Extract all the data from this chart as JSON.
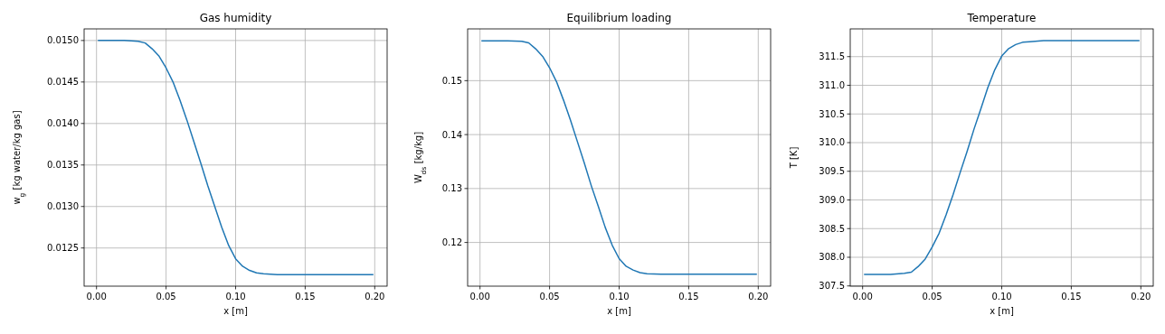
{
  "chart_data": [
    {
      "type": "line",
      "title": "Gas humidity",
      "xlabel": "x [m]",
      "ylabel": "w$_{g}$ [kg water/kg gas]",
      "grid": true,
      "xticks": [
        {
          "value": 0,
          "label": "0.00"
        },
        {
          "value": 0.05,
          "label": "0.05"
        },
        {
          "value": 0.1,
          "label": "0.10"
        },
        {
          "value": 0.15,
          "label": "0.15"
        },
        {
          "value": 0.2,
          "label": "0.20"
        }
      ],
      "x": [
        0.001,
        0.02,
        0.03,
        0.035,
        0.04,
        0.045,
        0.05,
        0.055,
        0.06,
        0.065,
        0.07,
        0.075,
        0.08,
        0.085,
        0.09,
        0.095,
        0.1,
        0.105,
        0.11,
        0.115,
        0.12,
        0.13,
        0.15,
        0.199
      ],
      "series": [
        {
          "color": "#1f77b4",
          "values": [
            0.015,
            0.015,
            0.01499,
            0.01497,
            0.0149,
            0.01481,
            0.01467,
            0.0145,
            0.01428,
            0.01404,
            0.01378,
            0.01352,
            0.01325,
            0.013,
            0.01275,
            0.01253,
            0.01237,
            0.01228,
            0.01223,
            0.0122,
            0.01219,
            0.01218,
            0.01218,
            0.01218
          ]
        }
      ],
      "xlim": [
        -0.0089,
        0.2089
      ],
      "ylim": [
        0.01204,
        0.01514
      ],
      "yticks": [
        0.0125,
        {
          "value": 0.013,
          "label": "0.0130"
        },
        0.0135,
        {
          "value": 0.014,
          "label": "0.0140"
        },
        0.0145,
        {
          "value": 0.015,
          "label": "0.0150"
        }
      ]
    },
    {
      "type": "line",
      "title": "Equilibrium loading",
      "xlabel": "x [m]",
      "ylabel": "W$_{ds}$ [kg/kg]",
      "grid": true,
      "xticks": [
        {
          "value": 0,
          "label": "0.00"
        },
        {
          "value": 0.05,
          "label": "0.05"
        },
        {
          "value": 0.1,
          "label": "0.10"
        },
        {
          "value": 0.15,
          "label": "0.15"
        },
        {
          "value": 0.2,
          "label": "0.20"
        }
      ],
      "x": [
        0.001,
        0.02,
        0.03,
        0.035,
        0.04,
        0.045,
        0.05,
        0.055,
        0.06,
        0.065,
        0.07,
        0.075,
        0.08,
        0.085,
        0.09,
        0.095,
        0.1,
        0.105,
        0.11,
        0.115,
        0.12,
        0.13,
        0.15,
        0.199
      ],
      "series": [
        {
          "color": "#1f77b4",
          "values": [
            0.1574,
            0.1574,
            0.1573,
            0.157,
            0.1559,
            0.1545,
            0.1524,
            0.1498,
            0.1464,
            0.1427,
            0.1387,
            0.1347,
            0.1305,
            0.1267,
            0.1228,
            0.1195,
            0.117,
            0.1156,
            0.1149,
            0.1144,
            0.1142,
            0.1141,
            0.1141,
            0.1141
          ]
        }
      ],
      "xlim": [
        -0.0089,
        0.2089
      ],
      "ylim": [
        0.1119,
        0.1596
      ],
      "yticks": [
        0.12,
        0.13,
        0.14,
        0.15
      ]
    },
    {
      "type": "line",
      "title": "Temperature",
      "xlabel": "x [m]",
      "ylabel": "T [K]",
      "grid": true,
      "xticks": [
        {
          "value": 0,
          "label": "0.00"
        },
        {
          "value": 0.05,
          "label": "0.05"
        },
        {
          "value": 0.1,
          "label": "0.10"
        },
        {
          "value": 0.15,
          "label": "0.15"
        },
        {
          "value": 0.2,
          "label": "0.20"
        }
      ],
      "x": [
        0.001,
        0.02,
        0.03,
        0.035,
        0.04,
        0.045,
        0.05,
        0.055,
        0.06,
        0.065,
        0.07,
        0.075,
        0.08,
        0.085,
        0.09,
        0.095,
        0.1,
        0.105,
        0.11,
        0.115,
        0.12,
        0.13,
        0.15,
        0.199
      ],
      "series": [
        {
          "color": "#1f77b4",
          "values": [
            307.7,
            307.7,
            307.72,
            307.74,
            307.84,
            307.97,
            308.18,
            308.42,
            308.74,
            309.09,
            309.47,
            309.84,
            310.23,
            310.59,
            310.96,
            311.27,
            311.51,
            311.64,
            311.71,
            311.75,
            311.76,
            311.78,
            311.78,
            311.78
          ]
        }
      ],
      "xlim": [
        -0.0089,
        0.2089
      ],
      "ylim": [
        307.496,
        311.984
      ],
      "yticks": [
        307.5,
        {
          "value": 308,
          "label": "308.0"
        },
        308.5,
        {
          "value": 309,
          "label": "309.0"
        },
        309.5,
        {
          "value": 310,
          "label": "310.0"
        },
        310.5,
        {
          "value": 311,
          "label": "311.0"
        },
        311.5
      ]
    }
  ]
}
